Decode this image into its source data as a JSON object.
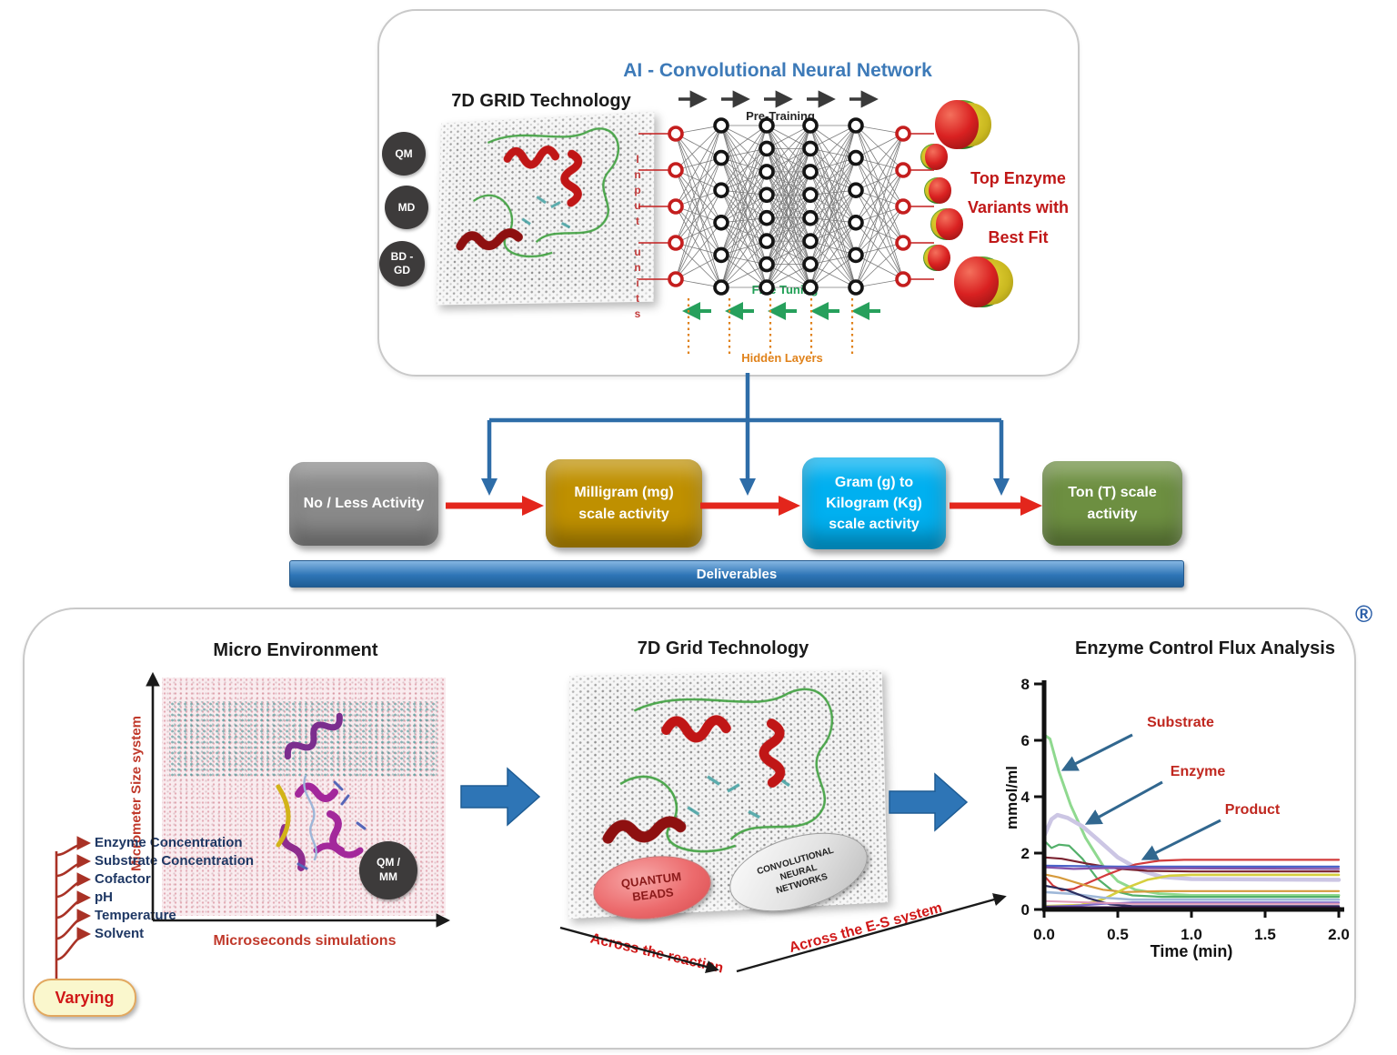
{
  "top_panel": {
    "ai_title": "AI - Convolutional Neural Network",
    "grid_title": "7D GRID Technology",
    "modules": {
      "qm": "QM",
      "md": "MD",
      "bd_line1": "BD -",
      "bd_line2": "GD"
    },
    "input_units_label": "Input units",
    "pretraining_label": "Pre-Training",
    "finetuning_label": "Fine Tuning",
    "hidden_layers_label": "Hidden Layers",
    "output_caption": "Top Enzyme Variants with Best Fit",
    "nn": {
      "layers": [
        5,
        6,
        8,
        8,
        6,
        5
      ],
      "io_color": "#c41e1e",
      "hidden_color": "#141414"
    },
    "colors": {
      "ai_title": "#3d7ab8",
      "finetuning": "#1fa055",
      "hidden_layers": "#e0821a",
      "output_caption": "#c01818"
    }
  },
  "flow": {
    "boxes": [
      {
        "label": "No / Less Activity",
        "color": "#8a8a8a"
      },
      {
        "label": "Milligram (mg) scale activity",
        "color": "#bf9000"
      },
      {
        "label": "Gram (g) to Kilogram (Kg) scale activity",
        "color": "#00b0f0"
      },
      {
        "label": "Ton (T) scale activity",
        "color": "#6d8f41"
      }
    ],
    "deliverables_label": "Deliverables",
    "deliverables_color": "#2e75b6",
    "arrow_color": "#e3261c",
    "connector_color": "#2e6da8"
  },
  "bottom_panel": {
    "registered_mark": "®",
    "micro": {
      "title": "Micro Environment",
      "y_axis_label": "Micrometer Size system",
      "x_axis_label": "Microseconds simulations",
      "qm_mm_line1": "QM /",
      "qm_mm_line2": "MM",
      "varying_label": "Varying",
      "items": [
        "Enzyme  Concentration",
        "Substrate Concentration",
        "Cofactor",
        "pH",
        "Temperature",
        "Solvent"
      ]
    },
    "grid7d": {
      "title": "7D Grid Technology",
      "quantum_beads_line1": "QUANTUM",
      "quantum_beads_line2": "BEADS",
      "cnn_line1": "CONVOLUTIONAL",
      "cnn_line2": "NEURAL",
      "cnn_line3": "NETWORKS",
      "axis_left_label": "Across the reaction",
      "axis_right_label": "Across the E-S system"
    }
  },
  "chart_data": {
    "type": "line",
    "title": "Enzyme Control  Flux Analysis",
    "xlabel": "Time (min)",
    "ylabel": "mmol/ml",
    "xlim": [
      0,
      2
    ],
    "ylim": [
      0,
      8
    ],
    "x_ticks": [
      "0.0",
      "0.5",
      "1.0",
      "1.5",
      "2.0"
    ],
    "x_tick_values": [
      0,
      0.5,
      1,
      1.5,
      2
    ],
    "y_ticks": [
      0,
      2,
      4,
      6,
      8
    ],
    "grid": false,
    "legend": "none",
    "annotations": [
      {
        "label": "Substrate",
        "color": "#c0271f"
      },
      {
        "label": "Enzyme",
        "color": "#c0271f"
      },
      {
        "label": "Product",
        "color": "#c0271f"
      }
    ],
    "series": [
      {
        "name": "Substrate",
        "color": "#8fd98f",
        "width": 3,
        "points": [
          [
            0,
            6.2
          ],
          [
            0.04,
            6.05
          ],
          [
            0.1,
            4.9
          ],
          [
            0.18,
            3.7
          ],
          [
            0.28,
            2.55
          ],
          [
            0.4,
            1.55
          ],
          [
            0.5,
            1.0
          ],
          [
            0.62,
            0.7
          ],
          [
            0.78,
            0.56
          ],
          [
            1.0,
            0.5
          ],
          [
            2.0,
            0.5
          ]
        ]
      },
      {
        "name": "Enzyme",
        "color": "#ccc6e4",
        "width": 4.5,
        "points": [
          [
            0,
            2.6
          ],
          [
            0.05,
            3.2
          ],
          [
            0.09,
            3.35
          ],
          [
            0.16,
            3.25
          ],
          [
            0.26,
            2.95
          ],
          [
            0.36,
            2.5
          ],
          [
            0.5,
            1.85
          ],
          [
            0.65,
            1.4
          ],
          [
            0.8,
            1.15
          ],
          [
            1.0,
            1.08
          ],
          [
            2.0,
            1.05
          ]
        ]
      },
      {
        "name": "intermediate-green",
        "color": "#53b06a",
        "width": 2.2,
        "points": [
          [
            0,
            2.45
          ],
          [
            0.05,
            2.18
          ],
          [
            0.1,
            2.3
          ],
          [
            0.17,
            2.26
          ],
          [
            0.26,
            1.8
          ],
          [
            0.36,
            1.1
          ],
          [
            0.46,
            0.68
          ],
          [
            0.6,
            0.5
          ],
          [
            0.8,
            0.45
          ],
          [
            2.0,
            0.45
          ]
        ]
      },
      {
        "name": "Product",
        "color": "#d23b3b",
        "width": 2.2,
        "points": [
          [
            0,
            1.2
          ],
          [
            0.06,
            0.85
          ],
          [
            0.12,
            0.68
          ],
          [
            0.2,
            0.73
          ],
          [
            0.3,
            0.95
          ],
          [
            0.42,
            1.22
          ],
          [
            0.52,
            1.42
          ],
          [
            0.62,
            1.6
          ],
          [
            0.78,
            1.73
          ],
          [
            0.95,
            1.76
          ],
          [
            2.0,
            1.76
          ]
        ]
      },
      {
        "name": "maroon-flat",
        "color": "#7a2230",
        "width": 2.2,
        "points": [
          [
            0,
            1.85
          ],
          [
            0.12,
            1.8
          ],
          [
            0.3,
            1.62
          ],
          [
            0.5,
            1.45
          ],
          [
            0.7,
            1.37
          ],
          [
            1.0,
            1.35
          ],
          [
            2.0,
            1.35
          ]
        ]
      },
      {
        "name": "blue-flat",
        "color": "#4a62c9",
        "width": 2.2,
        "points": [
          [
            0,
            1.55
          ],
          [
            0.5,
            1.52
          ],
          [
            2.0,
            1.52
          ]
        ]
      },
      {
        "name": "purple-flat",
        "color": "#8753a8",
        "width": 2.2,
        "points": [
          [
            0,
            1.5
          ],
          [
            0.2,
            1.44
          ],
          [
            0.45,
            1.47
          ],
          [
            2.0,
            1.44
          ]
        ]
      },
      {
        "name": "orange-decay",
        "color": "#d69a3c",
        "width": 2.2,
        "points": [
          [
            0,
            1.25
          ],
          [
            0.1,
            1.14
          ],
          [
            0.25,
            0.9
          ],
          [
            0.4,
            0.7
          ],
          [
            0.55,
            0.62
          ],
          [
            0.8,
            0.65
          ],
          [
            2.0,
            0.65
          ]
        ]
      },
      {
        "name": "yellow-rise",
        "color": "#d6cf3e",
        "width": 2.6,
        "points": [
          [
            0,
            0.12
          ],
          [
            0.25,
            0.16
          ],
          [
            0.4,
            0.36
          ],
          [
            0.55,
            0.75
          ],
          [
            0.7,
            1.05
          ],
          [
            0.85,
            1.2
          ],
          [
            1.0,
            1.23
          ],
          [
            2.0,
            1.23
          ]
        ]
      },
      {
        "name": "lightblue-decay",
        "color": "#9fb8d8",
        "width": 2.6,
        "points": [
          [
            0,
            0.62
          ],
          [
            0.2,
            0.55
          ],
          [
            0.4,
            0.42
          ],
          [
            0.6,
            0.35
          ],
          [
            2.0,
            0.35
          ]
        ]
      },
      {
        "name": "navy-decay",
        "color": "#2b2d5e",
        "width": 2.2,
        "points": [
          [
            0,
            0.85
          ],
          [
            0.15,
            0.7
          ],
          [
            0.3,
            0.4
          ],
          [
            0.45,
            0.18
          ],
          [
            0.6,
            0.12
          ],
          [
            2.0,
            0.12
          ]
        ]
      },
      {
        "name": "violet-low",
        "color": "#7c6bc9",
        "width": 2.2,
        "points": [
          [
            0,
            0.1
          ],
          [
            0.2,
            0.13
          ],
          [
            0.4,
            0.2
          ],
          [
            0.6,
            0.25
          ],
          [
            2.0,
            0.25
          ]
        ]
      },
      {
        "name": "pink-low",
        "color": "#e09ab8",
        "width": 2,
        "points": [
          [
            0,
            0.3
          ],
          [
            0.3,
            0.25
          ],
          [
            0.6,
            0.2
          ],
          [
            2.0,
            0.2
          ]
        ]
      },
      {
        "name": "baseline-dark",
        "color": "#3a1650",
        "width": 3.2,
        "points": [
          [
            0,
            0.06
          ],
          [
            2.0,
            0.06
          ]
        ]
      }
    ]
  }
}
